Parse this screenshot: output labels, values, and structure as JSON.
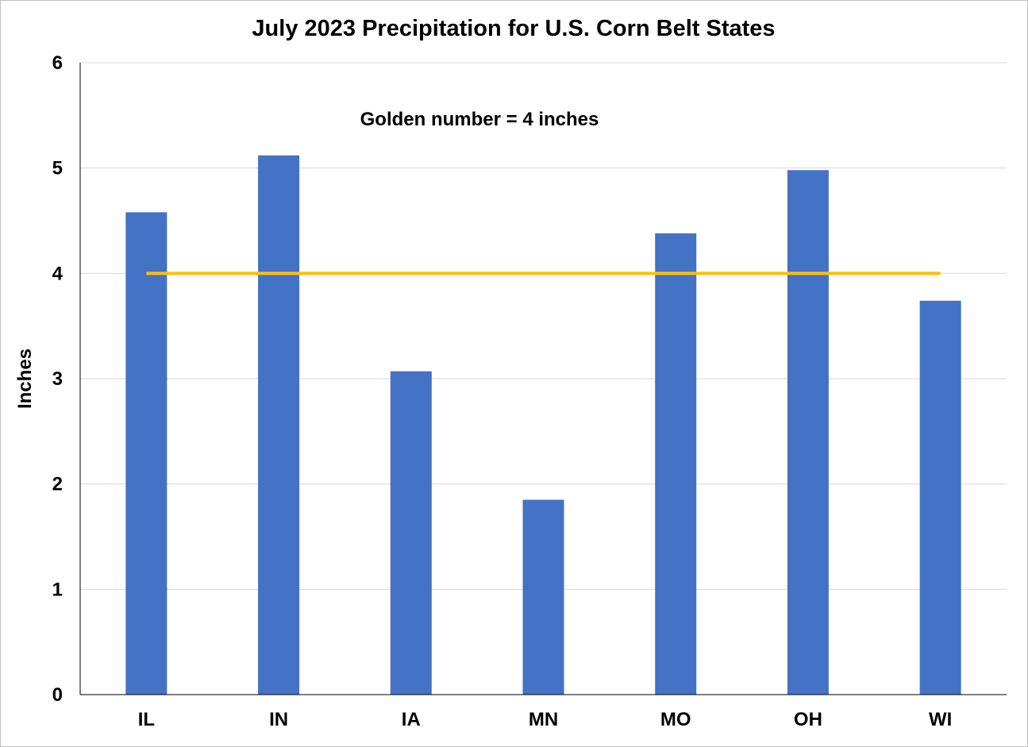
{
  "chart_data": {
    "type": "bar",
    "title": "July 2023 Precipitation for U.S. Corn Belt States",
    "xlabel": "",
    "ylabel": "Inches",
    "categories": [
      "IL",
      "IN",
      "IA",
      "MN",
      "MO",
      "OH",
      "WI"
    ],
    "values": [
      4.58,
      5.12,
      3.07,
      1.85,
      4.38,
      4.98,
      3.74
    ],
    "ylim": [
      0,
      6
    ],
    "yticks": [
      0,
      1,
      2,
      3,
      4,
      5,
      6
    ],
    "grid": true,
    "legend": "none",
    "reference_line": {
      "value": 4,
      "label": "Golden number = 4 inches",
      "color": "#FFC000"
    },
    "bar_color": "#4472C4"
  }
}
